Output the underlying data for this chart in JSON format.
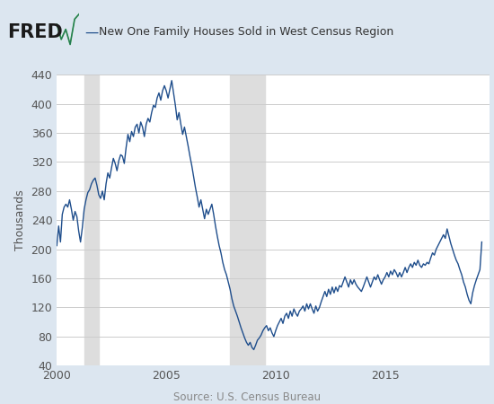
{
  "title": "New One Family Houses Sold in West Census Region",
  "ylabel": "Thousands",
  "source": "Source: U.S. Census Bureau",
  "background_color": "#dce6f0",
  "plot_background_color": "#ffffff",
  "line_color": "#1f4e8c",
  "line_width": 1.0,
  "ylim": [
    40,
    440
  ],
  "yticks": [
    40,
    80,
    120,
    160,
    200,
    240,
    280,
    320,
    360,
    400,
    440
  ],
  "recession_bands": [
    {
      "start": 2001.25,
      "end": 2001.92
    },
    {
      "start": 2007.92,
      "end": 2009.5
    }
  ],
  "xmin": 2000.0,
  "xmax": 2019.75,
  "xticks": [
    2000,
    2005,
    2010,
    2015
  ],
  "data": [
    [
      2000.0,
      205
    ],
    [
      2000.083,
      232
    ],
    [
      2000.167,
      210
    ],
    [
      2000.25,
      248
    ],
    [
      2000.333,
      258
    ],
    [
      2000.417,
      262
    ],
    [
      2000.5,
      258
    ],
    [
      2000.583,
      268
    ],
    [
      2000.667,
      255
    ],
    [
      2000.75,
      240
    ],
    [
      2000.833,
      252
    ],
    [
      2000.917,
      245
    ],
    [
      2001.0,
      225
    ],
    [
      2001.083,
      210
    ],
    [
      2001.167,
      230
    ],
    [
      2001.25,
      255
    ],
    [
      2001.333,
      268
    ],
    [
      2001.417,
      278
    ],
    [
      2001.5,
      282
    ],
    [
      2001.583,
      290
    ],
    [
      2001.667,
      295
    ],
    [
      2001.75,
      298
    ],
    [
      2001.833,
      288
    ],
    [
      2001.917,
      275
    ],
    [
      2002.0,
      270
    ],
    [
      2002.083,
      280
    ],
    [
      2002.167,
      268
    ],
    [
      2002.25,
      290
    ],
    [
      2002.333,
      305
    ],
    [
      2002.417,
      298
    ],
    [
      2002.5,
      312
    ],
    [
      2002.583,
      325
    ],
    [
      2002.667,
      318
    ],
    [
      2002.75,
      308
    ],
    [
      2002.833,
      322
    ],
    [
      2002.917,
      330
    ],
    [
      2003.0,
      328
    ],
    [
      2003.083,
      318
    ],
    [
      2003.167,
      340
    ],
    [
      2003.25,
      358
    ],
    [
      2003.333,
      348
    ],
    [
      2003.417,
      362
    ],
    [
      2003.5,
      355
    ],
    [
      2003.583,
      368
    ],
    [
      2003.667,
      372
    ],
    [
      2003.75,
      360
    ],
    [
      2003.833,
      375
    ],
    [
      2003.917,
      368
    ],
    [
      2004.0,
      355
    ],
    [
      2004.083,
      372
    ],
    [
      2004.167,
      380
    ],
    [
      2004.25,
      375
    ],
    [
      2004.333,
      388
    ],
    [
      2004.417,
      398
    ],
    [
      2004.5,
      395
    ],
    [
      2004.583,
      408
    ],
    [
      2004.667,
      415
    ],
    [
      2004.75,
      405
    ],
    [
      2004.833,
      418
    ],
    [
      2004.917,
      425
    ],
    [
      2005.0,
      418
    ],
    [
      2005.083,
      408
    ],
    [
      2005.167,
      420
    ],
    [
      2005.25,
      432
    ],
    [
      2005.333,
      415
    ],
    [
      2005.417,
      398
    ],
    [
      2005.5,
      378
    ],
    [
      2005.583,
      388
    ],
    [
      2005.667,
      372
    ],
    [
      2005.75,
      358
    ],
    [
      2005.833,
      368
    ],
    [
      2005.917,
      355
    ],
    [
      2006.0,
      342
    ],
    [
      2006.083,
      328
    ],
    [
      2006.167,
      315
    ],
    [
      2006.25,
      300
    ],
    [
      2006.333,
      285
    ],
    [
      2006.417,
      272
    ],
    [
      2006.5,
      258
    ],
    [
      2006.583,
      268
    ],
    [
      2006.667,
      255
    ],
    [
      2006.75,
      242
    ],
    [
      2006.833,
      255
    ],
    [
      2006.917,
      248
    ],
    [
      2007.0,
      255
    ],
    [
      2007.083,
      262
    ],
    [
      2007.167,
      248
    ],
    [
      2007.25,
      232
    ],
    [
      2007.333,
      218
    ],
    [
      2007.417,
      205
    ],
    [
      2007.5,
      195
    ],
    [
      2007.583,
      182
    ],
    [
      2007.667,
      172
    ],
    [
      2007.75,
      165
    ],
    [
      2007.833,
      155
    ],
    [
      2007.917,
      145
    ],
    [
      2008.0,
      132
    ],
    [
      2008.083,
      122
    ],
    [
      2008.167,
      115
    ],
    [
      2008.25,
      108
    ],
    [
      2008.333,
      100
    ],
    [
      2008.417,
      92
    ],
    [
      2008.5,
      85
    ],
    [
      2008.583,
      78
    ],
    [
      2008.667,
      72
    ],
    [
      2008.75,
      68
    ],
    [
      2008.833,
      72
    ],
    [
      2008.917,
      65
    ],
    [
      2009.0,
      62
    ],
    [
      2009.083,
      68
    ],
    [
      2009.167,
      75
    ],
    [
      2009.25,
      78
    ],
    [
      2009.333,
      82
    ],
    [
      2009.417,
      88
    ],
    [
      2009.5,
      92
    ],
    [
      2009.583,
      95
    ],
    [
      2009.667,
      88
    ],
    [
      2009.75,
      92
    ],
    [
      2009.833,
      85
    ],
    [
      2009.917,
      80
    ],
    [
      2010.0,
      88
    ],
    [
      2010.083,
      95
    ],
    [
      2010.167,
      100
    ],
    [
      2010.25,
      105
    ],
    [
      2010.333,
      98
    ],
    [
      2010.417,
      108
    ],
    [
      2010.5,
      112
    ],
    [
      2010.583,
      105
    ],
    [
      2010.667,
      115
    ],
    [
      2010.75,
      108
    ],
    [
      2010.833,
      118
    ],
    [
      2010.917,
      112
    ],
    [
      2011.0,
      108
    ],
    [
      2011.083,
      115
    ],
    [
      2011.167,
      118
    ],
    [
      2011.25,
      122
    ],
    [
      2011.333,
      115
    ],
    [
      2011.417,
      125
    ],
    [
      2011.5,
      118
    ],
    [
      2011.583,
      125
    ],
    [
      2011.667,
      118
    ],
    [
      2011.75,
      112
    ],
    [
      2011.833,
      122
    ],
    [
      2011.917,
      115
    ],
    [
      2012.0,
      120
    ],
    [
      2012.083,
      128
    ],
    [
      2012.167,
      135
    ],
    [
      2012.25,
      142
    ],
    [
      2012.333,
      135
    ],
    [
      2012.417,
      145
    ],
    [
      2012.5,
      138
    ],
    [
      2012.583,
      148
    ],
    [
      2012.667,
      140
    ],
    [
      2012.75,
      148
    ],
    [
      2012.833,
      142
    ],
    [
      2012.917,
      150
    ],
    [
      2013.0,
      148
    ],
    [
      2013.083,
      155
    ],
    [
      2013.167,
      162
    ],
    [
      2013.25,
      155
    ],
    [
      2013.333,
      148
    ],
    [
      2013.417,
      158
    ],
    [
      2013.5,
      152
    ],
    [
      2013.583,
      158
    ],
    [
      2013.667,
      152
    ],
    [
      2013.75,
      148
    ],
    [
      2013.833,
      145
    ],
    [
      2013.917,
      142
    ],
    [
      2014.0,
      148
    ],
    [
      2014.083,
      155
    ],
    [
      2014.167,
      162
    ],
    [
      2014.25,
      155
    ],
    [
      2014.333,
      148
    ],
    [
      2014.417,
      155
    ],
    [
      2014.5,
      162
    ],
    [
      2014.583,
      158
    ],
    [
      2014.667,
      165
    ],
    [
      2014.75,
      158
    ],
    [
      2014.833,
      152
    ],
    [
      2014.917,
      158
    ],
    [
      2015.0,
      162
    ],
    [
      2015.083,
      168
    ],
    [
      2015.167,
      162
    ],
    [
      2015.25,
      170
    ],
    [
      2015.333,
      165
    ],
    [
      2015.417,
      172
    ],
    [
      2015.5,
      168
    ],
    [
      2015.583,
      162
    ],
    [
      2015.667,
      168
    ],
    [
      2015.75,
      162
    ],
    [
      2015.833,
      168
    ],
    [
      2015.917,
      175
    ],
    [
      2016.0,
      168
    ],
    [
      2016.083,
      175
    ],
    [
      2016.167,
      180
    ],
    [
      2016.25,
      175
    ],
    [
      2016.333,
      182
    ],
    [
      2016.417,
      178
    ],
    [
      2016.5,
      185
    ],
    [
      2016.583,
      178
    ],
    [
      2016.667,
      175
    ],
    [
      2016.75,
      180
    ],
    [
      2016.833,
      178
    ],
    [
      2016.917,
      182
    ],
    [
      2017.0,
      180
    ],
    [
      2017.083,
      188
    ],
    [
      2017.167,
      195
    ],
    [
      2017.25,
      192
    ],
    [
      2017.333,
      200
    ],
    [
      2017.417,
      205
    ],
    [
      2017.5,
      210
    ],
    [
      2017.583,
      215
    ],
    [
      2017.667,
      220
    ],
    [
      2017.75,
      215
    ],
    [
      2017.833,
      228
    ],
    [
      2017.917,
      218
    ],
    [
      2018.0,
      208
    ],
    [
      2018.083,
      200
    ],
    [
      2018.167,
      192
    ],
    [
      2018.25,
      185
    ],
    [
      2018.333,
      180
    ],
    [
      2018.417,
      172
    ],
    [
      2018.5,
      165
    ],
    [
      2018.583,
      155
    ],
    [
      2018.667,
      148
    ],
    [
      2018.75,
      138
    ],
    [
      2018.833,
      130
    ],
    [
      2018.917,
      125
    ],
    [
      2019.0,
      140
    ],
    [
      2019.083,
      150
    ],
    [
      2019.167,
      158
    ],
    [
      2019.25,
      165
    ],
    [
      2019.333,
      172
    ],
    [
      2019.417,
      210
    ]
  ]
}
